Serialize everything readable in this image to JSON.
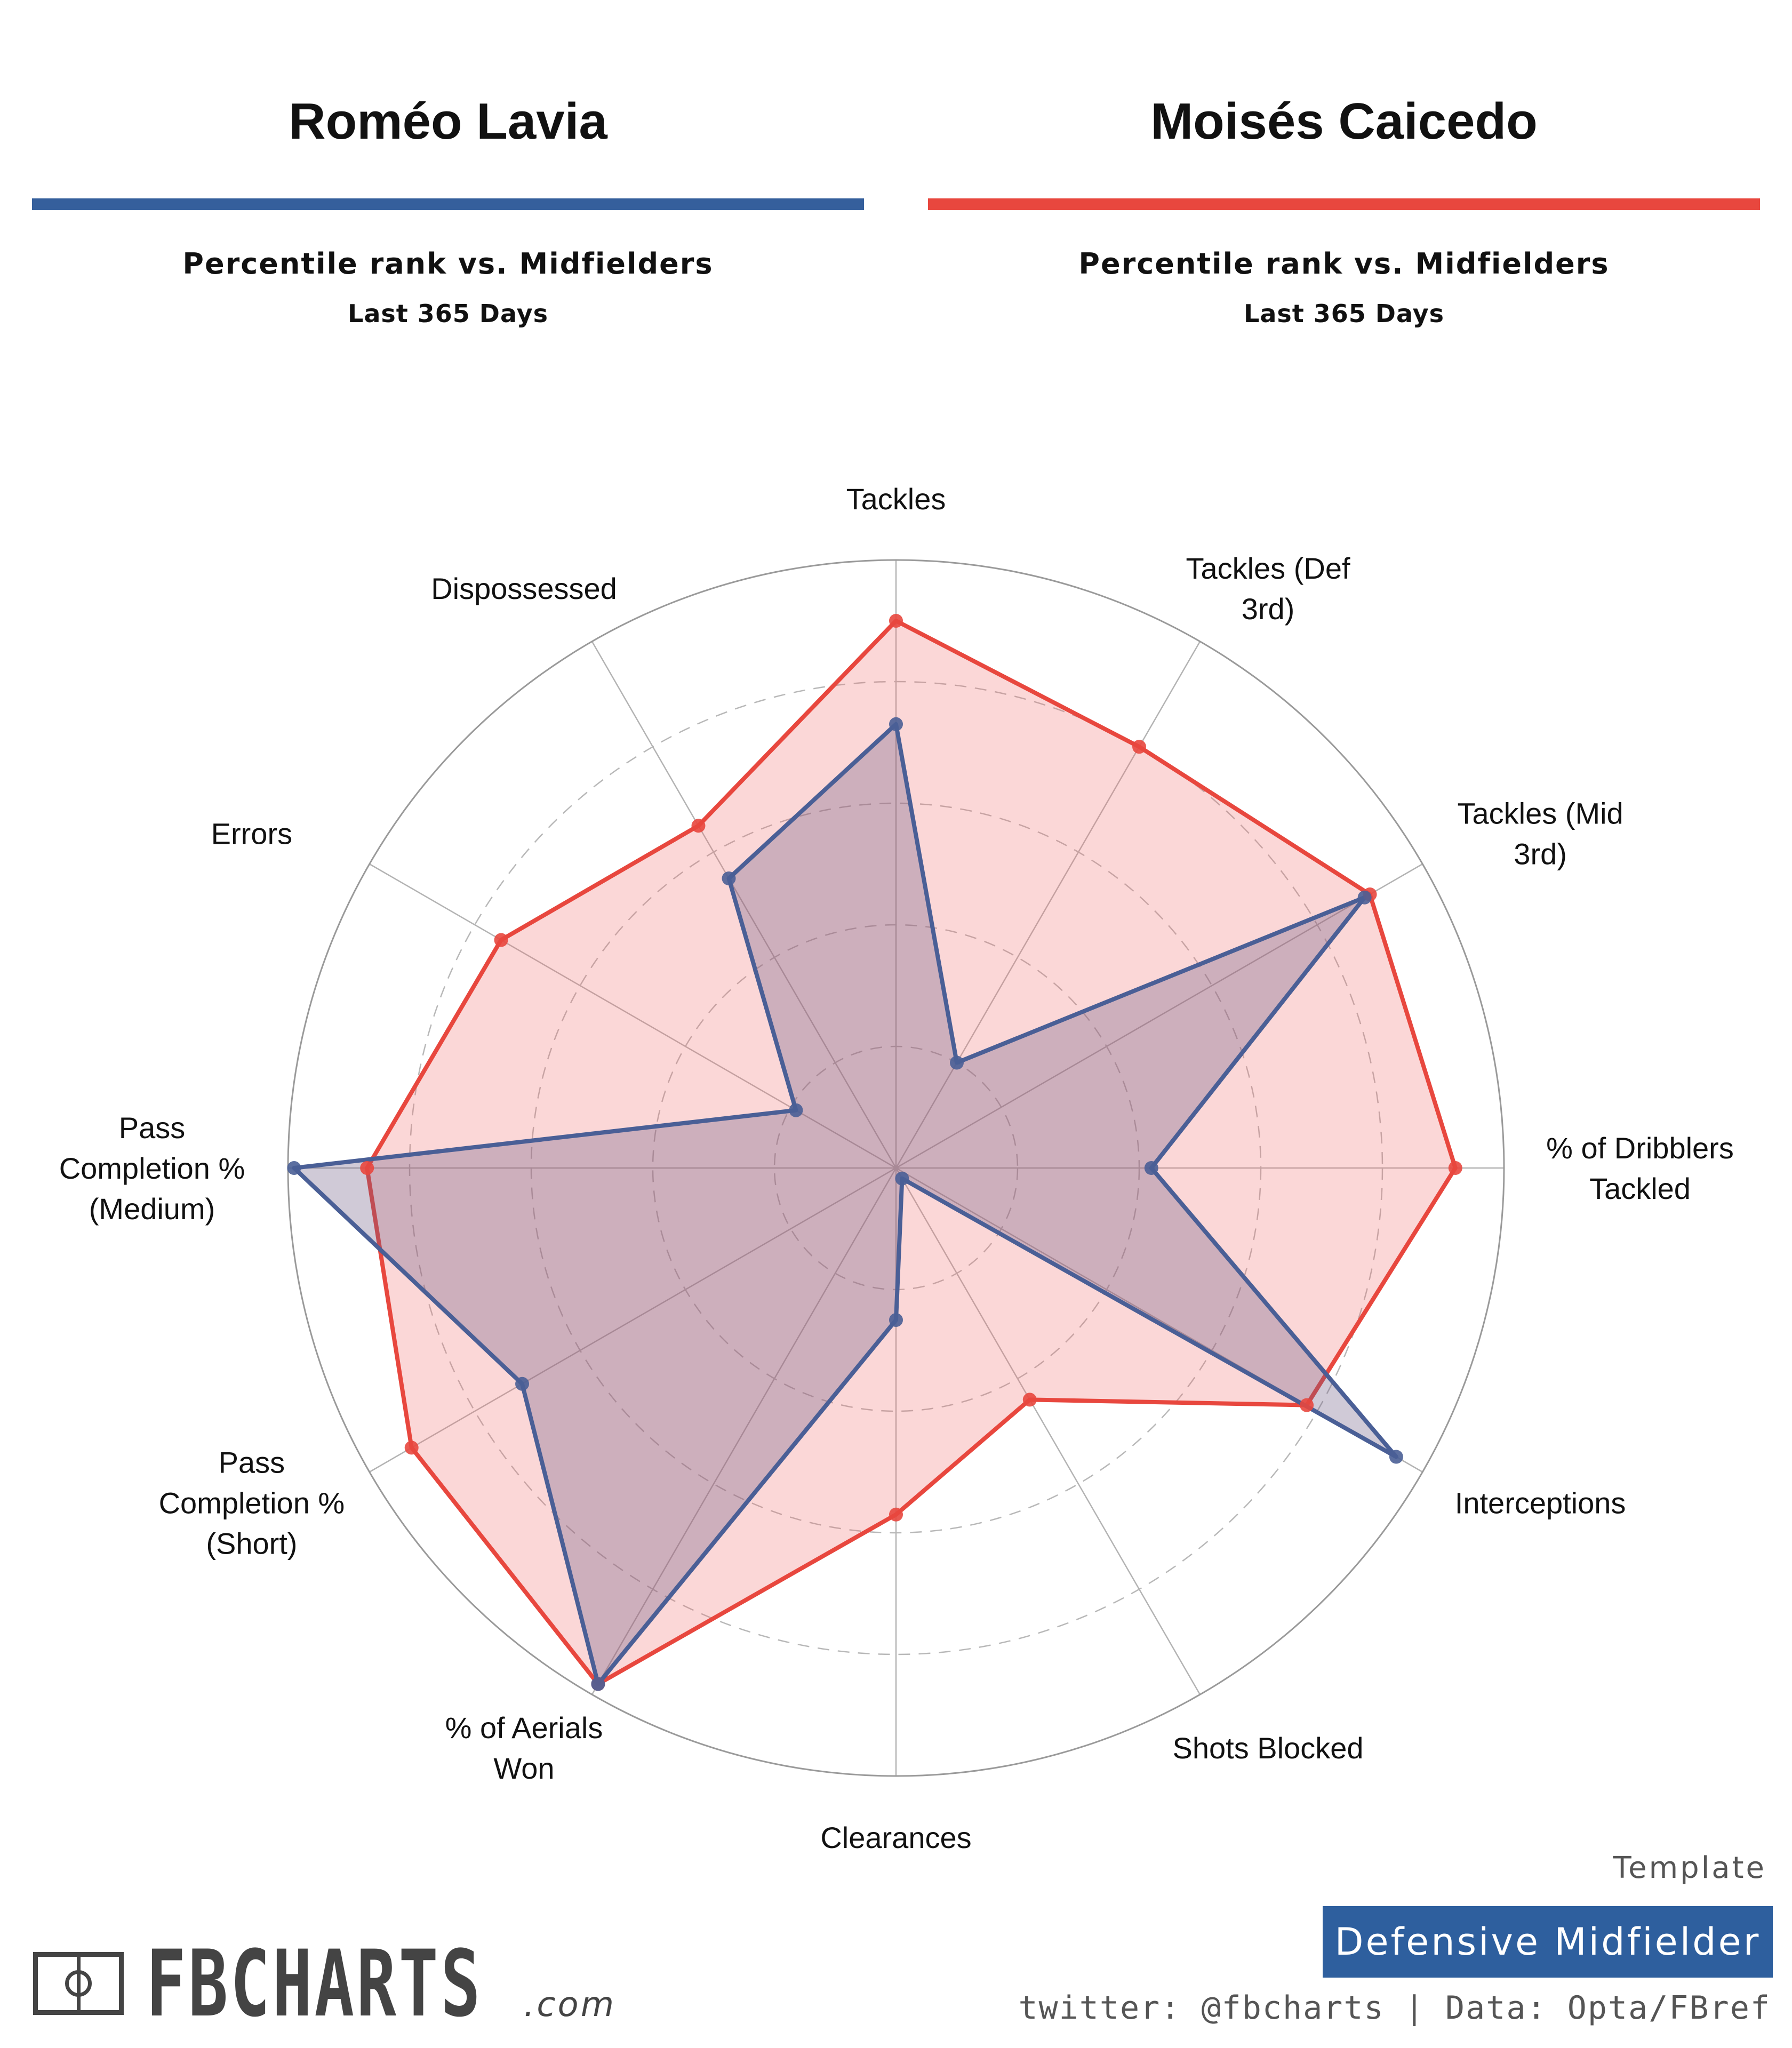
{
  "players": [
    {
      "name": "Roméo Lavia",
      "color": "#355f9c",
      "subtitle": "Percentile rank vs. Midfielders",
      "period": "Last 365 Days"
    },
    {
      "name": "Moisés Caicedo",
      "color": "#e8473e",
      "subtitle": "Percentile rank vs. Midfielders",
      "period": "Last 365 Days"
    }
  ],
  "chart_data": {
    "type": "radar",
    "title": "",
    "axes": [
      "Tackles",
      "Tackles (Def 3rd)",
      "Tackles (Mid 3rd)",
      "% of Dribblers Tackled",
      "Interceptions",
      "Shots Blocked",
      "Clearances",
      "% of Aerials Won",
      "Pass Completion % (Short)",
      "Pass Completion % (Medium)",
      "Errors",
      "Dispossessed"
    ],
    "rlim": [
      0,
      100
    ],
    "grid_circles": [
      20,
      40,
      60,
      80,
      100
    ],
    "series": [
      {
        "name": "Moisés Caicedo",
        "color": "#e8473e",
        "fill": "rgba(240,110,110,0.28)",
        "values": [
          90,
          80,
          90,
          92,
          78,
          44,
          57,
          98,
          92,
          87,
          75,
          65
        ]
      },
      {
        "name": "Roméo Lavia",
        "color": "#4a5f96",
        "fill": "rgba(110,90,130,0.32)",
        "values": [
          73,
          20,
          89,
          42,
          95,
          2,
          25,
          98,
          71,
          99,
          19,
          55
        ]
      }
    ]
  },
  "template": {
    "label": "Template",
    "value": "Defensive Midfielder"
  },
  "credit": "twitter: @fbcharts | Data: Opta/FBref",
  "logo": {
    "text": "FBCHARTS",
    "domain": ".com"
  }
}
